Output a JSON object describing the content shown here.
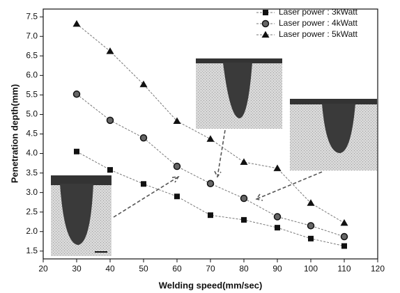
{
  "chart_data": {
    "type": "line",
    "xlabel": "Welding speed(mm/sec)",
    "ylabel": "Penetration depth(mm)",
    "x": [
      30,
      40,
      50,
      60,
      70,
      80,
      90,
      100,
      110
    ],
    "series": [
      {
        "name": "Laser power : 3kWatt",
        "color": "#111111",
        "marker": "square",
        "values": [
          4.05,
          3.58,
          3.22,
          2.9,
          2.42,
          2.3,
          2.1,
          1.82,
          1.63
        ]
      },
      {
        "name": "Laser power : 4kWatt",
        "color": "#111111",
        "marker": "circle",
        "values": [
          5.52,
          4.85,
          4.4,
          3.67,
          3.23,
          2.85,
          2.38,
          2.15,
          1.87
        ]
      },
      {
        "name": "Laser power : 5kWatt",
        "color": "#111111",
        "marker": "triangle",
        "values": [
          7.32,
          6.62,
          5.77,
          4.83,
          4.37,
          3.78,
          3.62,
          2.73,
          2.22
        ]
      }
    ],
    "xlim": [
      20,
      120
    ],
    "xticks": [
      20,
      30,
      40,
      50,
      60,
      70,
      80,
      90,
      100,
      110,
      120
    ],
    "ylim": [
      1.3,
      7.7
    ],
    "yticks": [
      1.5,
      {
        "value": 2,
        "label": "2.0"
      },
      2.5,
      {
        "value": 3,
        "label": "3.0"
      },
      3.5,
      {
        "value": 4,
        "label": "4.0"
      },
      4.5,
      {
        "value": 5,
        "label": "5.0"
      },
      5.5,
      {
        "value": 6,
        "label": "6.0"
      },
      6.5,
      {
        "value": 7,
        "label": "7.0"
      },
      7.5
    ],
    "legend": "top-right"
  }
}
